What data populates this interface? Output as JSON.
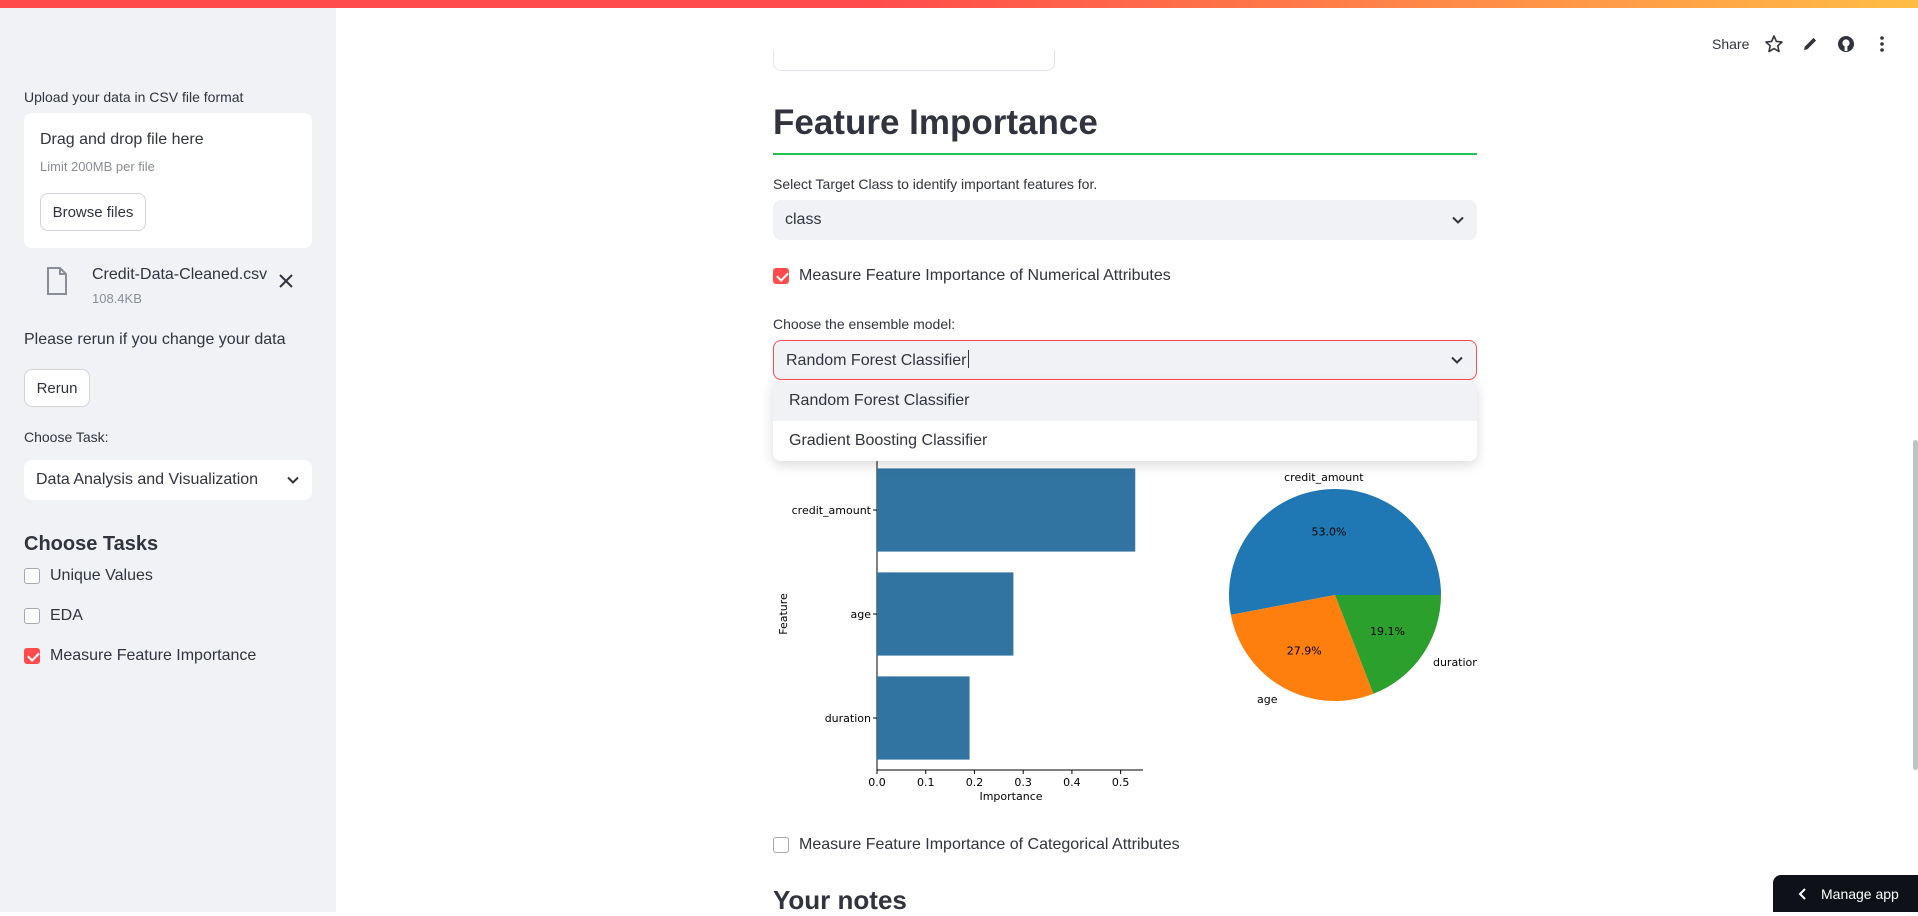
{
  "sidebar": {
    "upload_label": "Upload your data in CSV file format",
    "dropzone_title": "Drag and drop file here",
    "dropzone_limit": "Limit 200MB per file",
    "browse_label": "Browse files",
    "file": {
      "name": "Credit-Data-Cleaned.csv",
      "size": "108.4KB"
    },
    "rerun_hint": "Please rerun if you change your data",
    "rerun_label": "Rerun",
    "task_label": "Choose Task:",
    "task_value": "Data Analysis and Visualization",
    "tasks_heading": "Choose Tasks",
    "tasks": [
      {
        "label": "Unique Values",
        "checked": false
      },
      {
        "label": "EDA",
        "checked": false
      },
      {
        "label": "Measure Feature Importance",
        "checked": true
      }
    ]
  },
  "header": {
    "share_label": "Share",
    "icons": [
      "star-icon",
      "edit-icon",
      "github-icon",
      "more-vertical-icon"
    ]
  },
  "main": {
    "title": "Feature Importance",
    "target_label": "Select Target Class to identify important features for.",
    "target_value": "class",
    "numerical_checkbox": {
      "label": "Measure Feature Importance of Numerical Attributes",
      "checked": true
    },
    "model_label": "Choose the ensemble model:",
    "model_value": "Random Forest Classifier",
    "model_options": [
      "Random Forest Classifier",
      "Gradient Boosting Classifier"
    ],
    "categorical_checkbox": {
      "label": "Measure Feature Importance of Categorical Attributes",
      "checked": false
    },
    "notes_heading": "Your notes"
  },
  "manage_app_label": "Manage app",
  "colors": {
    "accent": "#ff4b4b",
    "rule": "#21c354",
    "bar": "#3274a1",
    "pie_blue": "#1f77b4",
    "pie_orange": "#ff7f0e",
    "pie_green": "#2ca02c"
  },
  "chart_data": [
    {
      "type": "bar",
      "orientation": "horizontal",
      "categories": [
        "credit_amount",
        "age",
        "duration"
      ],
      "values": [
        0.53,
        0.28,
        0.19
      ],
      "xlabel": "Importance",
      "ylabel": "Feature",
      "xlim": [
        0,
        0.55
      ],
      "xticks": [
        "0.0",
        "0.1",
        "0.2",
        "0.3",
        "0.4",
        "0.5"
      ]
    },
    {
      "type": "pie",
      "labels": [
        "credit_amount",
        "age",
        "duration"
      ],
      "values": [
        53.0,
        27.9,
        19.1
      ],
      "value_labels": [
        "53.0%",
        "27.9%",
        "19.1%"
      ],
      "colors": [
        "#1f77b4",
        "#ff7f0e",
        "#2ca02c"
      ]
    }
  ]
}
